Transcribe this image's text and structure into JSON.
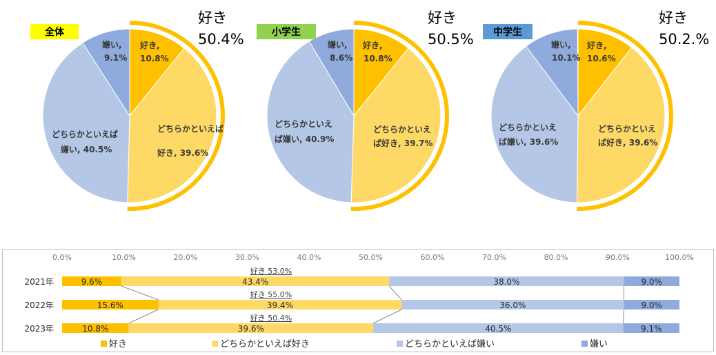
{
  "colors": {
    "like": "#FFC000",
    "somewhat_like": "#FFD966",
    "somewhat_dislike": "#B4C7E7",
    "dislike": "#8FAADC",
    "arc": "#FFC000",
    "tag_all": "#FFFF00",
    "tag_elem": "#92D050",
    "tag_middle": "#5B9BD5"
  },
  "chart_data": [
    {
      "type": "pie",
      "group_label": "全体",
      "total_label": "好き",
      "total_value": "50.4%",
      "slices": [
        {
          "label": "好き,",
          "value_text": "10.8%",
          "value": 10.8,
          "color_key": "like"
        },
        {
          "label": "どちらかといえば好き,",
          "value_text": "39.6%",
          "value": 39.6,
          "color_key": "somewhat_like"
        },
        {
          "label": "どちらかといえば嫌い,",
          "value_text": "40.5%",
          "value": 40.5,
          "color_key": "somewhat_dislike"
        },
        {
          "label": "嫌い,",
          "value_text": "9.1%",
          "value": 9.1,
          "color_key": "dislike"
        }
      ]
    },
    {
      "type": "pie",
      "group_label": "小学生",
      "total_label": "好き",
      "total_value": "50.5%",
      "slices": [
        {
          "label": "好き,",
          "value_text": "10.8%",
          "value": 10.8,
          "color_key": "like"
        },
        {
          "label": "どちらかといえば好き,",
          "value_text": "39.7%",
          "value": 39.7,
          "color_key": "somewhat_like"
        },
        {
          "label": "どちらかといえば嫌い,",
          "value_text": "40.9%",
          "value": 40.9,
          "color_key": "somewhat_dislike"
        },
        {
          "label": "嫌い,",
          "value_text": "8.6%",
          "value": 8.6,
          "color_key": "dislike"
        }
      ]
    },
    {
      "type": "pie",
      "group_label": "中学生",
      "total_label": "好き",
      "total_value": "50.2.%",
      "slices": [
        {
          "label": "好き,",
          "value_text": "10.6%",
          "value": 10.6,
          "color_key": "like"
        },
        {
          "label": "どちらかといえば好き,",
          "value_text": "39.6%",
          "value": 39.6,
          "color_key": "somewhat_like"
        },
        {
          "label": "どちらかといえば嫌い,",
          "value_text": "39.6%",
          "value": 39.6,
          "color_key": "somewhat_dislike"
        },
        {
          "label": "嫌い,",
          "value_text": "10.1%",
          "value": 10.1,
          "color_key": "dislike"
        }
      ]
    },
    {
      "type": "bar",
      "orientation": "horizontal",
      "stacked": true,
      "xlim": [
        0,
        100
      ],
      "x_ticks": [
        "0.0%",
        "10.0%",
        "20.0%",
        "30.0%",
        "40.0%",
        "50.0%",
        "60.0%",
        "70.0%",
        "80.0%",
        "90.0%",
        "100.0%"
      ],
      "categories": [
        "2021年",
        "2022年",
        "2023年"
      ],
      "series": [
        {
          "name": "好き",
          "color_key": "like",
          "values": [
            9.6,
            15.6,
            10.8
          ],
          "labels": [
            "9.6%",
            "15.6%",
            "10.8%"
          ]
        },
        {
          "name": "どちらかといえば好き",
          "color_key": "somewhat_like",
          "values": [
            43.4,
            39.4,
            39.6
          ],
          "labels": [
            "43.4%",
            "39.4%",
            "39.6%"
          ]
        },
        {
          "name": "どちらかといえば嫌い",
          "color_key": "somewhat_dislike",
          "values": [
            38.0,
            36.0,
            40.5
          ],
          "labels": [
            "38.0%",
            "36.0%",
            "40.5%"
          ]
        },
        {
          "name": "嫌い",
          "color_key": "dislike",
          "values": [
            9.0,
            9.0,
            9.1
          ],
          "labels": [
            "9.0%",
            "9.0%",
            "9.1%"
          ]
        }
      ],
      "annotations": [
        "好き 53.0%",
        "好き 55.0%",
        "好き 50.4%"
      ],
      "legend": [
        "好き",
        "どちらかといえば好き",
        "どちらかといえば嫌い",
        "嫌い"
      ],
      "legend_position": "bottom"
    }
  ]
}
